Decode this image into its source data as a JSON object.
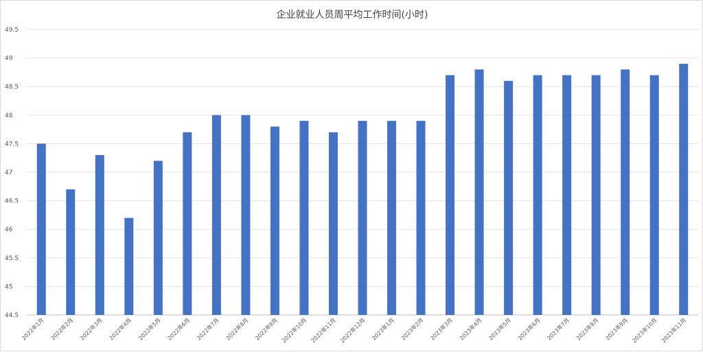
{
  "chart_data": {
    "type": "bar",
    "title": "企业就业人员周平均工作时间(小时)",
    "xlabel": "",
    "ylabel": "",
    "ylim": [
      44.5,
      49.5
    ],
    "yticks": [
      44.5,
      45,
      45.5,
      46,
      46.5,
      47,
      47.5,
      48,
      48.5,
      49,
      49.5
    ],
    "ytick_labels": [
      "44.5",
      "45",
      "45.5",
      "46",
      "46.5",
      "47",
      "47.5",
      "48",
      "48.5",
      "49",
      "49.5"
    ],
    "grid": true,
    "legend": "none",
    "color": "#4472c4",
    "categories": [
      "2022年1月",
      "2022年2月",
      "2022年3月",
      "2022年4月",
      "2022年5月",
      "2022年6月",
      "2022年7月",
      "2022年8月",
      "2022年9月",
      "2022年10月",
      "2022年11月",
      "2022年12月",
      "2023年1月",
      "2023年2月",
      "2023年3月",
      "2023年4月",
      "2023年5月",
      "2023年6月",
      "2023年7月",
      "2023年8月",
      "2023年9月",
      "2023年10月",
      "2023年11月"
    ],
    "values": [
      47.5,
      46.7,
      47.3,
      46.2,
      47.2,
      47.7,
      48.0,
      48.0,
      47.8,
      47.9,
      47.7,
      47.9,
      47.9,
      47.9,
      48.7,
      48.8,
      48.6,
      48.7,
      48.7,
      48.7,
      48.8,
      48.7,
      48.9
    ]
  }
}
